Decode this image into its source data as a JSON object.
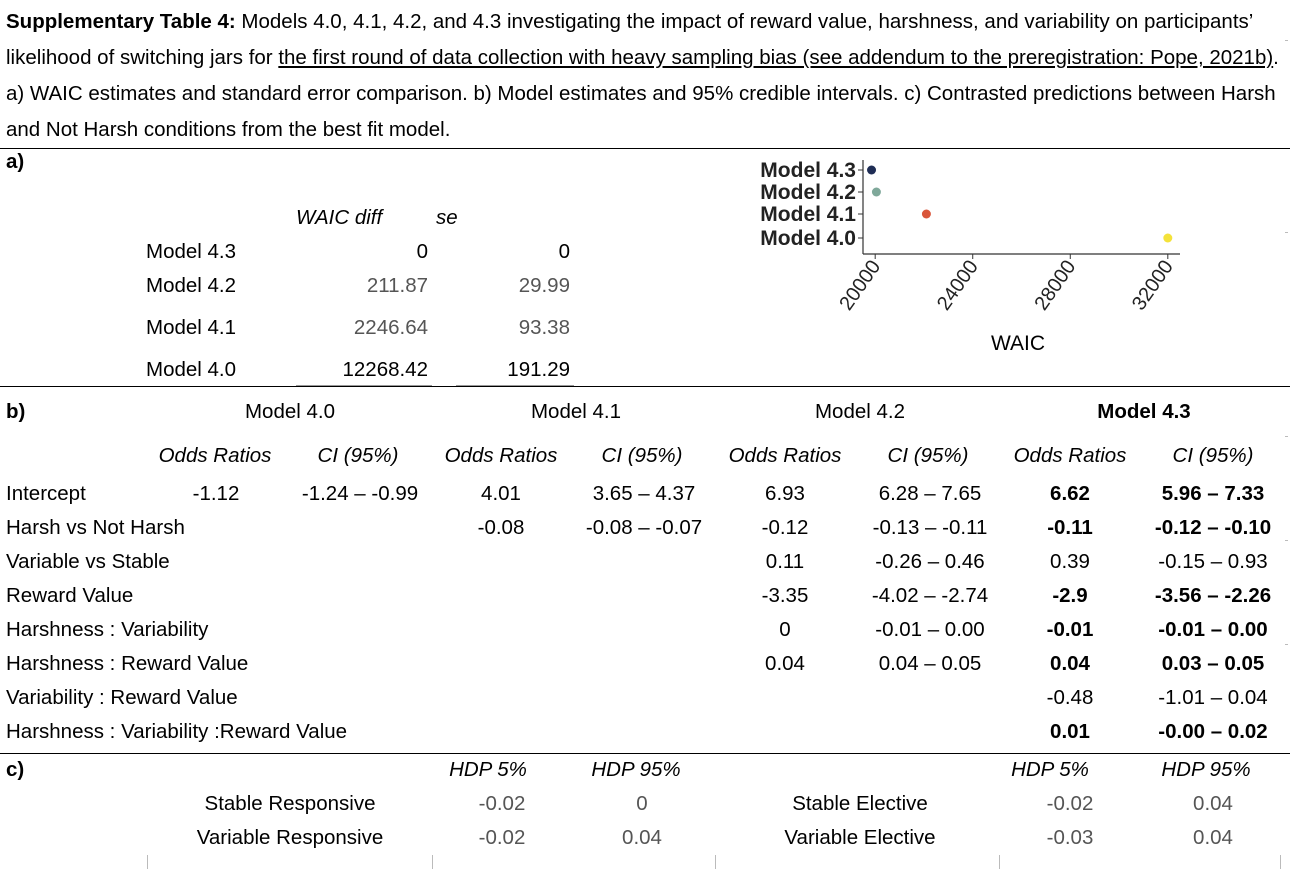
{
  "caption": {
    "lead": "Supplementary Table 4:",
    "pre_link": " Models 4.0, 4.1, 4.2, and 4.3 investigating the impact of reward value, harshness, and variability on participants’  likelihood of switching jars for ",
    "link": "the first round of data collection with heavy sampling bias (see addendum to the preregistration: Pope, 2021b)",
    "post_link": ". a) WAIC estimates and standard error comparison. b) Model estimates and 95% credible intervals. c) Contrasted predictions between Harsh and Not Harsh conditions from the best fit model."
  },
  "section_a": {
    "label": "a)",
    "col_waic": "WAIC diff",
    "col_se": "se",
    "rows": [
      {
        "model": "Model 4.3",
        "waic": "0",
        "se": "0"
      },
      {
        "model": "Model 4.2",
        "waic": "211.87",
        "se": "29.99"
      },
      {
        "model": "Model 4.1",
        "waic": "2246.64",
        "se": "93.38"
      },
      {
        "model": "Model 4.0",
        "waic": "12268.42",
        "se": "191.29"
      }
    ]
  },
  "chart_data": {
    "type": "scatter",
    "xlabel": "WAIC",
    "ylabel": "",
    "xlim": [
      19500,
      32500
    ],
    "xticks": [
      "20000",
      "24000",
      "28000",
      "32000"
    ],
    "xtick_values": [
      20000,
      24000,
      28000,
      32000
    ],
    "categories": [
      "Model 4.3",
      "Model 4.2",
      "Model 4.1",
      "Model 4.0"
    ],
    "points": [
      {
        "model": "Model 4.3",
        "x": 19850,
        "color": "#1f2d55"
      },
      {
        "model": "Model 4.2",
        "x": 20050,
        "color": "#7fa89a"
      },
      {
        "model": "Model 4.1",
        "x": 22100,
        "color": "#d9553a"
      },
      {
        "model": "Model 4.0",
        "x": 32000,
        "color": "#f4e23a"
      }
    ]
  },
  "section_b": {
    "label": "b)",
    "models": [
      "Model 4.0",
      "Model 4.1",
      "Model 4.2",
      "Model 4.3"
    ],
    "sub_or": "Odds Ratios",
    "sub_ci": "CI (95%)",
    "rows": [
      {
        "term": "Intercept",
        "m40_or": "-1.12",
        "m40_ci": "-1.24 – -0.99",
        "m41_or": "4.01",
        "m41_ci": "3.65 – 4.37",
        "m42_or": "6.93",
        "m42_ci": "6.28 – 7.65",
        "m43_or": "6.62",
        "m43_ci": "5.96 – 7.33",
        "bold_or": true,
        "bold_ci": true
      },
      {
        "term": "Harsh vs Not Harsh",
        "m40_or": "",
        "m40_ci": "",
        "m41_or": "-0.08",
        "m41_ci": "-0.08 – -0.07",
        "m42_or": "-0.12",
        "m42_ci": "-0.13 – -0.11",
        "m43_or": "-0.11",
        "m43_ci": "-0.12 – -0.10",
        "bold_or": true,
        "bold_ci": true
      },
      {
        "term": "Variable vs Stable",
        "m40_or": "",
        "m40_ci": "",
        "m41_or": "",
        "m41_ci": "",
        "m42_or": "0.11",
        "m42_ci": "-0.26 – 0.46",
        "m43_or": "0.39",
        "m43_ci": "-0.15 – 0.93",
        "bold_or": false,
        "bold_ci": false
      },
      {
        "term": "Reward Value",
        "m40_or": "",
        "m40_ci": "",
        "m41_or": "",
        "m41_ci": "",
        "m42_or": "-3.35",
        "m42_ci": "-4.02 – -2.74",
        "m43_or": "-2.9",
        "m43_ci": "-3.56 – -2.26",
        "bold_or": true,
        "bold_ci": true
      },
      {
        "term": "Harshness : Variability",
        "m40_or": "",
        "m40_ci": "",
        "m41_or": "",
        "m41_ci": "",
        "m42_or": "0",
        "m42_ci": "-0.01 – 0.00",
        "m43_or": "-0.01",
        "m43_ci": "-0.01 – 0.00",
        "bold_or": true,
        "bold_ci": true
      },
      {
        "term": "Harshness : Reward Value",
        "m40_or": "",
        "m40_ci": "",
        "m41_or": "",
        "m41_ci": "",
        "m42_or": "0.04",
        "m42_ci": "0.04 – 0.05",
        "m43_or": "0.04",
        "m43_ci": "0.03 – 0.05",
        "bold_or": true,
        "bold_ci": true
      },
      {
        "term": "Variability : Reward Value",
        "m40_or": "",
        "m40_ci": "",
        "m41_or": "",
        "m41_ci": "",
        "m42_or": "",
        "m42_ci": "",
        "m43_or": "-0.48",
        "m43_ci": "-1.01 – 0.04",
        "bold_or": false,
        "bold_ci": false
      },
      {
        "term": "Harshness : Variability :Reward Value",
        "m40_or": "",
        "m40_ci": "",
        "m41_or": "",
        "m41_ci": "",
        "m42_or": "",
        "m42_ci": "",
        "m43_or": "0.01",
        "m43_ci": "-0.00 – 0.02",
        "bold_or": true,
        "bold_ci": true
      }
    ]
  },
  "section_c": {
    "label": "c)",
    "hdp5": "HDP 5%",
    "hdp95": "HDP 95%",
    "left": [
      {
        "label": "Stable Responsive",
        "hdp5": "-0.02",
        "hdp95": "0"
      },
      {
        "label": "Variable Responsive",
        "hdp5": "-0.02",
        "hdp95": "0.04"
      }
    ],
    "right": [
      {
        "label": "Stable Elective",
        "hdp5": "-0.02",
        "hdp95": "0.04"
      },
      {
        "label": "Variable Elective",
        "hdp5": "-0.03",
        "hdp95": "0.04"
      }
    ]
  }
}
